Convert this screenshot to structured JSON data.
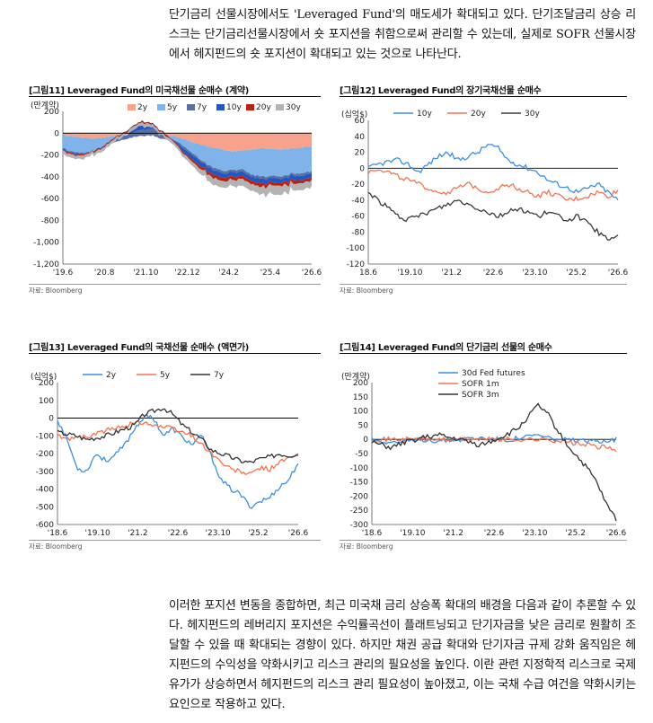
{
  "top_text": "단기금리 선물시장에서도 'Leveraged Fund'의 매도세가 확대되고 있다. 단기조달금리 상승 리스크는 단기금리선물시장에서 숏 포지션을 취함으로써 관리할 수 있는데, 실제로 SOFR 선물시장에서 헤지펀드의 숏 포지션이 확대되고 있는 것으로 나타난다.",
  "bottom_text": "이러한 포지션 변동을 종합하면, 최근 미국채 금리 상승폭 확대의 배경을 다음과 같이 추론할 수 있다. 헤지펀드의 레버리지 포지션은 수익률곡선이 플래트닝되고 단기자금을 낮은 금리로 원활히 조달할 수 있을 때 확대되는 경향이 있다. 하지만 채권 공급 확대와 단기자금 규제 강화 움직임은 헤지펀드의 수익성을 약화시키고 리스크 관리의 필요성을 높인다. 이란 관련 지정학적 리스크로 국제유가가 상승하면서 헤지펀드의 리스크 관리 필요성이 높아졌고, 이는 국채 수급 여건을 약화시키는 요인으로 작용하고 있다.",
  "figures": [
    {
      "title": "[그림11] Leveraged Fund의 미국채선물 순매수 (계약)",
      "source": "자료: Bloomberg"
    },
    {
      "title": "[그림12] Leveraged Fund의 장기국채선물 순매수",
      "source": "자료: Bloomberg"
    },
    {
      "title": "[그림13] Leveraged Fund의 국채선물 순매수 (액면가)",
      "source": "자료: Bloomberg"
    },
    {
      "title": "[그림14] Leveraged Fund의 단기금리 선물의 순매수",
      "source": "자료: Bloomberg"
    }
  ],
  "chart_data": [
    {
      "type": "area",
      "stacked": true,
      "unit": "(만계약)",
      "ylim": [
        -1200,
        200
      ],
      "yticks": [
        "200",
        "0",
        "-200",
        "-400",
        "-600",
        "-800",
        "-1,000",
        "-1,200"
      ],
      "ytick_values": [
        200,
        0,
        -200,
        -400,
        -600,
        -800,
        -1000,
        -1200
      ],
      "xticks": [
        "'19.6",
        "'20.8",
        "'21.10",
        "'22.12",
        "'24.2",
        "'25.4",
        "'26.6"
      ],
      "legend_position": "top",
      "x": [
        0,
        0.04,
        0.08,
        0.12,
        0.16,
        0.2,
        0.24,
        0.28,
        0.32,
        0.36,
        0.4,
        0.44,
        0.48,
        0.52,
        0.56,
        0.6,
        0.64,
        0.68,
        0.72,
        0.76,
        0.8,
        0.84,
        0.88,
        0.92,
        0.96,
        1.0
      ],
      "series": [
        {
          "name": "2y",
          "color": "#f7a38c",
          "values": [
            -20,
            -30,
            -40,
            -50,
            -40,
            -30,
            -20,
            -10,
            -5,
            -10,
            -20,
            -30,
            -50,
            -80,
            -110,
            -130,
            -150,
            -170,
            -160,
            -150,
            -140,
            -140,
            -150,
            -140,
            -130,
            -120
          ]
        },
        {
          "name": "5y",
          "color": "#7fb3ea",
          "values": [
            -120,
            -140,
            -140,
            -120,
            -110,
            -60,
            -40,
            -30,
            -20,
            -10,
            -30,
            -30,
            -60,
            -100,
            -150,
            -180,
            -200,
            -170,
            -170,
            -230,
            -260,
            -250,
            -250,
            -230,
            -240,
            -230
          ]
        },
        {
          "name": "7y",
          "color": "#5a6f9e",
          "values": [
            -10,
            -10,
            -10,
            0,
            0,
            10,
            20,
            40,
            60,
            60,
            40,
            0,
            -20,
            -20,
            -20,
            -20,
            -20,
            -20,
            -20,
            -20,
            -20,
            -20,
            -20,
            -20,
            -20,
            -20
          ]
        },
        {
          "name": "10y",
          "color": "#1f56c8",
          "values": [
            -10,
            -10,
            -10,
            10,
            20,
            30,
            40,
            60,
            80,
            50,
            30,
            0,
            -30,
            -40,
            -40,
            -40,
            -40,
            -40,
            -40,
            -40,
            -40,
            -40,
            -40,
            -40,
            -40,
            -40
          ]
        },
        {
          "name": "20y",
          "color": "#b8230f",
          "values": [
            -10,
            -10,
            -10,
            -10,
            -10,
            -10,
            -10,
            -10,
            -10,
            -10,
            -10,
            -10,
            -20,
            -20,
            -30,
            -30,
            -30,
            -30,
            -30,
            -30,
            -30,
            -30,
            -30,
            -30,
            -30,
            -30
          ]
        },
        {
          "name": "30y",
          "color": "#b3b3b3",
          "values": [
            -30,
            -30,
            -30,
            -30,
            -30,
            -30,
            -30,
            -30,
            -30,
            -30,
            -30,
            -30,
            -30,
            -40,
            -50,
            -60,
            -60,
            -60,
            -60,
            -60,
            -70,
            -80,
            -80,
            -60,
            -60,
            -60
          ]
        }
      ]
    },
    {
      "type": "line",
      "unit": "(십억$)",
      "ylim": [
        -120,
        60
      ],
      "yticks": [
        "60",
        "40",
        "20",
        "0",
        "-20",
        "-40",
        "-60",
        "-80",
        "-100",
        "-120"
      ],
      "ytick_values": [
        60,
        40,
        20,
        0,
        -20,
        -40,
        -60,
        -80,
        -100,
        -120
      ],
      "xticks": [
        "18.6",
        "'19.10",
        "'21.2",
        "'22.6",
        "'23.10",
        "'25.2",
        "'26.6"
      ],
      "legend_position": "top",
      "x": [
        0,
        0.04,
        0.08,
        0.12,
        0.16,
        0.2,
        0.24,
        0.28,
        0.32,
        0.36,
        0.4,
        0.44,
        0.48,
        0.52,
        0.56,
        0.6,
        0.64,
        0.68,
        0.72,
        0.76,
        0.8,
        0.84,
        0.88,
        0.92,
        0.96,
        1.0
      ],
      "series": [
        {
          "name": "10y",
          "color": "#3b8fe0",
          "values": [
            0,
            5,
            8,
            10,
            5,
            -5,
            5,
            15,
            20,
            10,
            15,
            20,
            30,
            25,
            10,
            5,
            0,
            -5,
            -15,
            -20,
            -25,
            -30,
            -25,
            -20,
            -30,
            -40
          ]
        },
        {
          "name": "20y",
          "color": "#f4724f",
          "values": [
            -5,
            0,
            -5,
            -10,
            -15,
            -20,
            -25,
            -30,
            -30,
            -25,
            -20,
            -25,
            -30,
            -25,
            -20,
            -25,
            -30,
            -35,
            -30,
            -35,
            -40,
            -38,
            -35,
            -30,
            -35,
            -28
          ]
        },
        {
          "name": "30y",
          "color": "#3a3a3a",
          "values": [
            -30,
            -40,
            -50,
            -60,
            -65,
            -60,
            -55,
            -50,
            -45,
            -40,
            -45,
            -50,
            -55,
            -60,
            -55,
            -50,
            -55,
            -60,
            -55,
            -60,
            -65,
            -60,
            -70,
            -80,
            -90,
            -85
          ]
        }
      ]
    },
    {
      "type": "line",
      "unit": "(십억$)",
      "ylim": [
        -600,
        200
      ],
      "yticks": [
        "200",
        "100",
        "0",
        "-100",
        "-200",
        "-300",
        "-400",
        "-500",
        "-600"
      ],
      "ytick_values": [
        200,
        100,
        0,
        -100,
        -200,
        -300,
        -400,
        -500,
        -600
      ],
      "xticks": [
        "'18.6",
        "'19.10",
        "'21.2",
        "'22.6",
        "'23.10",
        "'25.2",
        "'26.6"
      ],
      "legend_position": "top",
      "x": [
        0,
        0.04,
        0.08,
        0.12,
        0.16,
        0.2,
        0.24,
        0.28,
        0.32,
        0.36,
        0.4,
        0.44,
        0.48,
        0.52,
        0.56,
        0.6,
        0.64,
        0.68,
        0.72,
        0.76,
        0.8,
        0.84,
        0.88,
        0.92,
        0.96,
        1.0
      ],
      "series": [
        {
          "name": "2y",
          "color": "#3b8fe0",
          "values": [
            -10,
            -120,
            -280,
            -300,
            -200,
            -240,
            -210,
            -150,
            -60,
            10,
            0,
            -100,
            -60,
            -110,
            -150,
            -100,
            -220,
            -350,
            -400,
            -430,
            -500,
            -470,
            -450,
            -390,
            -350,
            -250
          ]
        },
        {
          "name": "5y",
          "color": "#f4724f",
          "values": [
            -100,
            -120,
            -100,
            -110,
            -90,
            -70,
            -60,
            -40,
            -30,
            -20,
            -40,
            -50,
            -60,
            -80,
            -100,
            -150,
            -200,
            -250,
            -290,
            -300,
            -320,
            -280,
            -290,
            -250,
            -230,
            -210
          ]
        },
        {
          "name": "7y",
          "color": "#333333",
          "values": [
            -80,
            -90,
            -100,
            -120,
            -110,
            -100,
            -80,
            -60,
            -40,
            20,
            40,
            60,
            20,
            -40,
            -80,
            -120,
            -180,
            -200,
            -220,
            -240,
            -250,
            -230,
            -220,
            -200,
            -210,
            -200
          ]
        }
      ]
    },
    {
      "type": "line",
      "unit": "(만계약)",
      "ylim": [
        -300,
        200
      ],
      "yticks": [
        "200",
        "150",
        "100",
        "50",
        "0",
        "-50",
        "-100",
        "-150",
        "-200",
        "-250",
        "-300"
      ],
      "ytick_values": [
        200,
        150,
        100,
        50,
        0,
        -50,
        -100,
        -150,
        -200,
        -250,
        -300
      ],
      "xticks": [
        "'18.6",
        "'19.10",
        "'21.2",
        "'22.6",
        "'23.10",
        "'25.2",
        "'26.6"
      ],
      "legend_position": "top-left",
      "x": [
        0,
        0.04,
        0.08,
        0.12,
        0.16,
        0.2,
        0.24,
        0.28,
        0.32,
        0.36,
        0.4,
        0.44,
        0.48,
        0.52,
        0.56,
        0.6,
        0.64,
        0.68,
        0.72,
        0.76,
        0.8,
        0.84,
        0.88,
        0.92,
        0.96,
        1.0
      ],
      "series": [
        {
          "name": "30d Fed futures",
          "color": "#3b8fe0",
          "values": [
            0,
            -5,
            -10,
            -8,
            -5,
            0,
            -3,
            -5,
            -2,
            0,
            3,
            5,
            2,
            0,
            -2,
            5,
            10,
            15,
            5,
            0,
            -3,
            -5,
            -8,
            -5,
            -3,
            0
          ]
        },
        {
          "name": "SOFR 1m",
          "color": "#f4724f",
          "values": [
            0,
            0,
            0,
            0,
            0,
            0,
            0,
            0,
            0,
            0,
            0,
            0,
            0,
            0,
            0,
            0,
            0,
            0,
            0,
            -5,
            -10,
            -15,
            -20,
            -25,
            -30,
            -35
          ]
        },
        {
          "name": "SOFR 3m",
          "color": "#333333",
          "values": [
            -10,
            -20,
            -30,
            -15,
            -5,
            5,
            10,
            15,
            5,
            0,
            -10,
            -20,
            -10,
            5,
            20,
            40,
            80,
            120,
            90,
            30,
            -20,
            -60,
            -100,
            -150,
            -230,
            -280
          ]
        }
      ]
    }
  ]
}
